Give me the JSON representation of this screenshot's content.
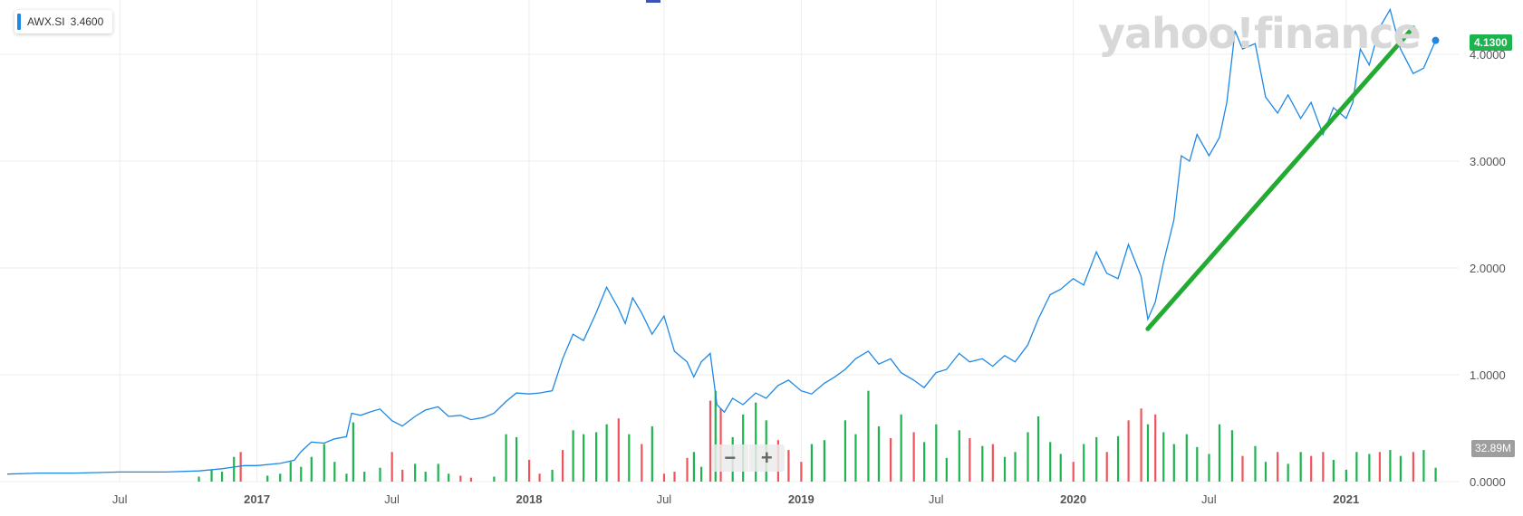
{
  "legend": {
    "symbol": "AWX.SI",
    "value": "3.4600"
  },
  "watermark": "yahoo!finance",
  "price_tag": "4.1300",
  "volume_tag": "32.89M",
  "zoom": {
    "minus": "−",
    "plus": "+"
  },
  "colors": {
    "price_line": "#1e88e5",
    "up_volume": "#1cb44e",
    "down_volume": "#f0535a",
    "trend_line": "#22aa33",
    "grid": "#ececec",
    "tick_text": "#555555"
  },
  "chart_data": {
    "type": "line",
    "x_ticks": [
      "Jul",
      "2017",
      "Jul",
      "2018",
      "Jul",
      "2019",
      "Jul",
      "2020",
      "Jul",
      "2021"
    ],
    "x_tick_dates": [
      "2016-07-01",
      "2017-01-01",
      "2017-07-01",
      "2018-01-01",
      "2018-07-01",
      "2019-01-01",
      "2019-07-01",
      "2020-01-01",
      "2020-07-01",
      "2021-01-01"
    ],
    "y_ticks": [
      "4.0000",
      "3.0000",
      "2.0000",
      "1.0000",
      "0.0000"
    ],
    "ylim": [
      0,
      4.5
    ],
    "xlim": [
      "2016-02-01",
      "2021-06-01"
    ],
    "grid": true,
    "price_series": {
      "name": "AWX.SI",
      "points": [
        [
          "2016-02-01",
          0.07
        ],
        [
          "2016-03-15",
          0.08
        ],
        [
          "2016-05-01",
          0.08
        ],
        [
          "2016-07-01",
          0.09
        ],
        [
          "2016-09-01",
          0.09
        ],
        [
          "2016-10-15",
          0.1
        ],
        [
          "2016-11-15",
          0.12
        ],
        [
          "2016-12-15",
          0.15
        ],
        [
          "2017-01-01",
          0.15
        ],
        [
          "2017-02-01",
          0.17
        ],
        [
          "2017-02-20",
          0.2
        ],
        [
          "2017-03-01",
          0.28
        ],
        [
          "2017-03-15",
          0.37
        ],
        [
          "2017-04-01",
          0.36
        ],
        [
          "2017-04-15",
          0.4
        ],
        [
          "2017-05-01",
          0.42
        ],
        [
          "2017-05-08",
          0.64
        ],
        [
          "2017-05-20",
          0.62
        ],
        [
          "2017-06-01",
          0.65
        ],
        [
          "2017-06-15",
          0.68
        ],
        [
          "2017-07-01",
          0.57
        ],
        [
          "2017-07-15",
          0.52
        ],
        [
          "2017-08-01",
          0.61
        ],
        [
          "2017-08-15",
          0.67
        ],
        [
          "2017-09-01",
          0.7
        ],
        [
          "2017-09-15",
          0.61
        ],
        [
          "2017-10-01",
          0.62
        ],
        [
          "2017-10-15",
          0.58
        ],
        [
          "2017-11-01",
          0.6
        ],
        [
          "2017-11-15",
          0.64
        ],
        [
          "2017-12-01",
          0.75
        ],
        [
          "2017-12-15",
          0.83
        ],
        [
          "2018-01-01",
          0.82
        ],
        [
          "2018-01-15",
          0.83
        ],
        [
          "2018-02-01",
          0.85
        ],
        [
          "2018-02-15",
          1.15
        ],
        [
          "2018-03-01",
          1.38
        ],
        [
          "2018-03-15",
          1.32
        ],
        [
          "2018-04-01",
          1.58
        ],
        [
          "2018-04-15",
          1.82
        ],
        [
          "2018-05-01",
          1.62
        ],
        [
          "2018-05-10",
          1.48
        ],
        [
          "2018-05-20",
          1.72
        ],
        [
          "2018-06-01",
          1.58
        ],
        [
          "2018-06-15",
          1.38
        ],
        [
          "2018-07-01",
          1.55
        ],
        [
          "2018-07-15",
          1.22
        ],
        [
          "2018-08-01",
          1.12
        ],
        [
          "2018-08-10",
          0.98
        ],
        [
          "2018-08-20",
          1.12
        ],
        [
          "2018-09-01",
          1.2
        ],
        [
          "2018-09-10",
          0.72
        ],
        [
          "2018-09-20",
          0.65
        ],
        [
          "2018-10-01",
          0.78
        ],
        [
          "2018-10-15",
          0.72
        ],
        [
          "2018-11-01",
          0.83
        ],
        [
          "2018-11-15",
          0.78
        ],
        [
          "2018-12-01",
          0.9
        ],
        [
          "2018-12-15",
          0.95
        ],
        [
          "2019-01-01",
          0.85
        ],
        [
          "2019-01-15",
          0.82
        ],
        [
          "2019-02-01",
          0.92
        ],
        [
          "2019-02-15",
          0.98
        ],
        [
          "2019-03-01",
          1.05
        ],
        [
          "2019-03-15",
          1.15
        ],
        [
          "2019-04-01",
          1.22
        ],
        [
          "2019-04-15",
          1.1
        ],
        [
          "2019-05-01",
          1.15
        ],
        [
          "2019-05-15",
          1.02
        ],
        [
          "2019-06-01",
          0.95
        ],
        [
          "2019-06-15",
          0.88
        ],
        [
          "2019-07-01",
          1.02
        ],
        [
          "2019-07-15",
          1.05
        ],
        [
          "2019-08-01",
          1.2
        ],
        [
          "2019-08-15",
          1.12
        ],
        [
          "2019-09-01",
          1.15
        ],
        [
          "2019-09-15",
          1.08
        ],
        [
          "2019-10-01",
          1.18
        ],
        [
          "2019-10-15",
          1.12
        ],
        [
          "2019-11-01",
          1.28
        ],
        [
          "2019-11-15",
          1.52
        ],
        [
          "2019-12-01",
          1.75
        ],
        [
          "2019-12-15",
          1.8
        ],
        [
          "2020-01-01",
          1.9
        ],
        [
          "2020-01-15",
          1.84
        ],
        [
          "2020-02-01",
          2.15
        ],
        [
          "2020-02-15",
          1.95
        ],
        [
          "2020-03-01",
          1.9
        ],
        [
          "2020-03-15",
          2.22
        ],
        [
          "2020-04-01",
          1.92
        ],
        [
          "2020-04-10",
          1.52
        ],
        [
          "2020-04-20",
          1.68
        ],
        [
          "2020-05-01",
          2.05
        ],
        [
          "2020-05-15",
          2.45
        ],
        [
          "2020-05-25",
          3.05
        ],
        [
          "2020-06-05",
          3.0
        ],
        [
          "2020-06-15",
          3.25
        ],
        [
          "2020-07-01",
          3.05
        ],
        [
          "2020-07-15",
          3.22
        ],
        [
          "2020-07-25",
          3.55
        ],
        [
          "2020-08-05",
          4.22
        ],
        [
          "2020-08-15",
          4.05
        ],
        [
          "2020-09-01",
          4.1
        ],
        [
          "2020-09-15",
          3.6
        ],
        [
          "2020-10-01",
          3.45
        ],
        [
          "2020-10-15",
          3.62
        ],
        [
          "2020-11-01",
          3.4
        ],
        [
          "2020-11-15",
          3.55
        ],
        [
          "2020-12-01",
          3.25
        ],
        [
          "2020-12-15",
          3.5
        ],
        [
          "2021-01-01",
          3.4
        ],
        [
          "2021-01-10",
          3.55
        ],
        [
          "2021-01-20",
          4.05
        ],
        [
          "2021-02-01",
          3.9
        ],
        [
          "2021-02-15",
          4.25
        ],
        [
          "2021-03-01",
          4.42
        ],
        [
          "2021-03-15",
          4.05
        ],
        [
          "2021-04-01",
          3.82
        ],
        [
          "2021-04-15",
          3.87
        ],
        [
          "2021-05-01",
          4.13
        ]
      ]
    },
    "trend_line": {
      "start": [
        "2020-04-10",
        1.43
      ],
      "end": [
        "2021-04-01",
        4.25
      ]
    },
    "volume_series": {
      "max_value": 110,
      "points": [
        [
          "2016-10-15",
          5,
          "up"
        ],
        [
          "2016-11-01",
          12,
          "up"
        ],
        [
          "2016-11-15",
          10,
          "up"
        ],
        [
          "2016-12-01",
          25,
          "up"
        ],
        [
          "2016-12-10",
          30,
          "down"
        ],
        [
          "2017-01-15",
          6,
          "up"
        ],
        [
          "2017-02-01",
          8,
          "up"
        ],
        [
          "2017-02-15",
          20,
          "up"
        ],
        [
          "2017-03-01",
          15,
          "up"
        ],
        [
          "2017-03-15",
          25,
          "up"
        ],
        [
          "2017-04-01",
          38,
          "up"
        ],
        [
          "2017-04-15",
          20,
          "up"
        ],
        [
          "2017-05-01",
          8,
          "up"
        ],
        [
          "2017-05-10",
          60,
          "up"
        ],
        [
          "2017-05-25",
          10,
          "up"
        ],
        [
          "2017-06-15",
          14,
          "up"
        ],
        [
          "2017-07-01",
          30,
          "down"
        ],
        [
          "2017-07-15",
          12,
          "down"
        ],
        [
          "2017-08-01",
          18,
          "up"
        ],
        [
          "2017-08-15",
          10,
          "up"
        ],
        [
          "2017-09-01",
          18,
          "up"
        ],
        [
          "2017-09-15",
          8,
          "up"
        ],
        [
          "2017-10-01",
          6,
          "down"
        ],
        [
          "2017-10-15",
          4,
          "down"
        ],
        [
          "2017-11-15",
          5,
          "up"
        ],
        [
          "2017-12-01",
          48,
          "up"
        ],
        [
          "2017-12-15",
          45,
          "up"
        ],
        [
          "2018-01-01",
          22,
          "down"
        ],
        [
          "2018-01-15",
          8,
          "down"
        ],
        [
          "2018-02-01",
          12,
          "up"
        ],
        [
          "2018-02-15",
          32,
          "down"
        ],
        [
          "2018-03-01",
          52,
          "up"
        ],
        [
          "2018-03-15",
          48,
          "up"
        ],
        [
          "2018-04-01",
          50,
          "up"
        ],
        [
          "2018-04-15",
          58,
          "up"
        ],
        [
          "2018-05-01",
          64,
          "down"
        ],
        [
          "2018-05-15",
          48,
          "up"
        ],
        [
          "2018-06-01",
          38,
          "down"
        ],
        [
          "2018-06-15",
          56,
          "up"
        ],
        [
          "2018-07-01",
          8,
          "down"
        ],
        [
          "2018-07-15",
          10,
          "down"
        ],
        [
          "2018-08-01",
          24,
          "down"
        ],
        [
          "2018-08-10",
          30,
          "up"
        ],
        [
          "2018-08-20",
          15,
          "up"
        ],
        [
          "2018-09-01",
          82,
          "down"
        ],
        [
          "2018-09-08",
          92,
          "up"
        ],
        [
          "2018-09-15",
          74,
          "down"
        ],
        [
          "2018-10-01",
          45,
          "up"
        ],
        [
          "2018-10-15",
          68,
          "up"
        ],
        [
          "2018-11-01",
          80,
          "up"
        ],
        [
          "2018-11-15",
          62,
          "up"
        ],
        [
          "2018-12-01",
          42,
          "down"
        ],
        [
          "2018-12-15",
          32,
          "down"
        ],
        [
          "2019-01-01",
          20,
          "down"
        ],
        [
          "2019-01-15",
          38,
          "up"
        ],
        [
          "2019-02-01",
          42,
          "up"
        ],
        [
          "2019-03-01",
          62,
          "up"
        ],
        [
          "2019-03-15",
          48,
          "up"
        ],
        [
          "2019-04-01",
          92,
          "up"
        ],
        [
          "2019-04-15",
          56,
          "up"
        ],
        [
          "2019-05-01",
          44,
          "down"
        ],
        [
          "2019-05-15",
          68,
          "up"
        ],
        [
          "2019-06-01",
          50,
          "down"
        ],
        [
          "2019-06-15",
          40,
          "up"
        ],
        [
          "2019-07-01",
          58,
          "up"
        ],
        [
          "2019-07-15",
          24,
          "up"
        ],
        [
          "2019-08-01",
          52,
          "up"
        ],
        [
          "2019-08-15",
          44,
          "down"
        ],
        [
          "2019-09-01",
          36,
          "up"
        ],
        [
          "2019-09-15",
          38,
          "down"
        ],
        [
          "2019-10-01",
          25,
          "up"
        ],
        [
          "2019-10-15",
          30,
          "up"
        ],
        [
          "2019-11-01",
          50,
          "up"
        ],
        [
          "2019-11-15",
          66,
          "up"
        ],
        [
          "2019-12-01",
          40,
          "up"
        ],
        [
          "2019-12-15",
          28,
          "up"
        ],
        [
          "2020-01-01",
          20,
          "down"
        ],
        [
          "2020-01-15",
          38,
          "up"
        ],
        [
          "2020-02-01",
          45,
          "up"
        ],
        [
          "2020-02-15",
          30,
          "down"
        ],
        [
          "2020-03-01",
          46,
          "up"
        ],
        [
          "2020-03-15",
          62,
          "down"
        ],
        [
          "2020-04-01",
          74,
          "down"
        ],
        [
          "2020-04-10",
          58,
          "up"
        ],
        [
          "2020-04-20",
          68,
          "down"
        ],
        [
          "2020-05-01",
          50,
          "up"
        ],
        [
          "2020-05-15",
          38,
          "up"
        ],
        [
          "2020-06-01",
          48,
          "up"
        ],
        [
          "2020-06-15",
          35,
          "up"
        ],
        [
          "2020-07-01",
          28,
          "up"
        ],
        [
          "2020-07-15",
          58,
          "up"
        ],
        [
          "2020-08-01",
          52,
          "up"
        ],
        [
          "2020-08-15",
          26,
          "down"
        ],
        [
          "2020-09-01",
          36,
          "up"
        ],
        [
          "2020-09-15",
          20,
          "up"
        ],
        [
          "2020-10-01",
          30,
          "down"
        ],
        [
          "2020-10-15",
          18,
          "up"
        ],
        [
          "2020-11-01",
          30,
          "up"
        ],
        [
          "2020-11-15",
          26,
          "down"
        ],
        [
          "2020-12-01",
          30,
          "down"
        ],
        [
          "2020-12-15",
          22,
          "up"
        ],
        [
          "2021-01-01",
          12,
          "up"
        ],
        [
          "2021-01-15",
          30,
          "up"
        ],
        [
          "2021-02-01",
          28,
          "up"
        ],
        [
          "2021-02-15",
          30,
          "down"
        ],
        [
          "2021-03-01",
          32,
          "up"
        ],
        [
          "2021-03-15",
          26,
          "up"
        ],
        [
          "2021-04-01",
          30,
          "down"
        ],
        [
          "2021-04-15",
          32,
          "up"
        ],
        [
          "2021-05-01",
          14,
          "up"
        ]
      ]
    }
  }
}
